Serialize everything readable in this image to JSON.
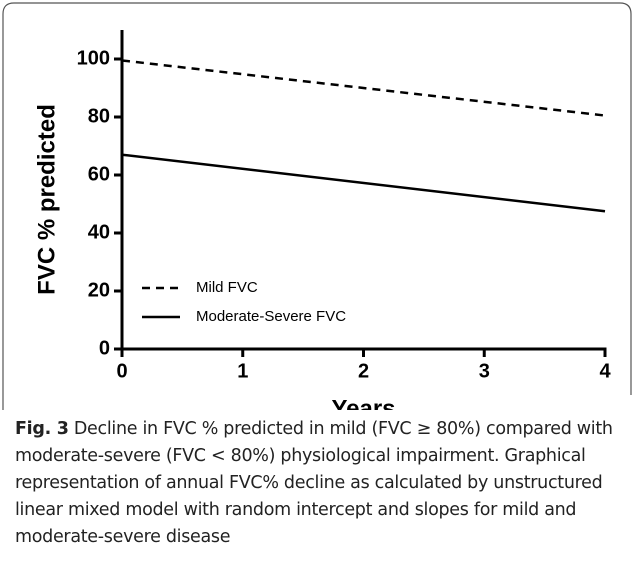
{
  "chart_data": {
    "type": "line",
    "x": [
      0,
      4
    ],
    "xlim": [
      0,
      4
    ],
    "xticks": [
      0,
      1,
      2,
      3,
      4
    ],
    "ylim": [
      0,
      110
    ],
    "yticks": [
      0,
      20,
      40,
      60,
      80,
      100
    ],
    "x_label": "Years",
    "y_label": "FVC % predicted",
    "legend": "lower left",
    "series": [
      {
        "name": "Mild FVC",
        "color": "#000000",
        "dash": true,
        "values": [
          99.5,
          80.5
        ]
      },
      {
        "name": "Moderate-Severe FVC",
        "color": "#000000",
        "dash": false,
        "values": [
          67,
          47.5
        ]
      }
    ]
  },
  "caption": {
    "label": "Fig. 3",
    "text": "Decline in FVC % predicted in mild (FVC ≥ 80%) compared with moderate-severe (FVC < 80%) physiological impairment. Graphical representation of annual FVC% decline as calculated by unstructured linear mixed model with random intercept and slopes for mild and moderate-severe disease"
  }
}
